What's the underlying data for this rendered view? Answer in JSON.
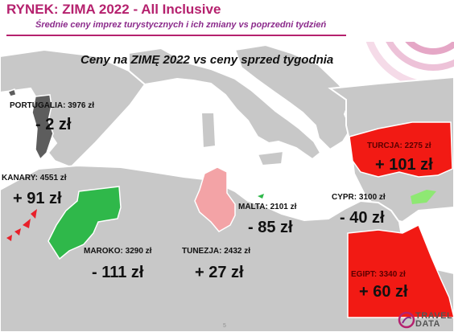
{
  "header": {
    "title": "RYNEK:  ZIMA 2022 - All Inclusive",
    "subtitle": "Średnie ceny imprez turystycznych i ich zmiany vs poprzedni tydzień"
  },
  "map_title": "Ceny na ZIMĘ 2022  vs  ceny sprzed tygodnia",
  "destinations": [
    {
      "label": "PORTUGALIA: 3976 zł",
      "delta": "- 2 zł",
      "color": "#5d5d5d"
    },
    {
      "label": "KANARY: 4551 zł",
      "delta": "+ 91 zł",
      "color": "#e8202a"
    },
    {
      "label": "MAROKO: 3290 zł",
      "delta": "- 111 zł",
      "color": "#2fb84a"
    },
    {
      "label": "TUNEZJA: 2432 zł",
      "delta": "+ 27 zł",
      "color": "#f3a3a6"
    },
    {
      "label": "MALTA: 2101 zł",
      "delta": "- 85 zł",
      "color": "#2fb84a"
    },
    {
      "label": "CYPR: 3100 zł",
      "delta": "- 40 zł",
      "color": "#8ee873"
    },
    {
      "label": "TURCJA: 2275 zł",
      "delta": "+ 101 zł",
      "color": "#f21a14"
    },
    {
      "label": "EGIPT: 3340 zł",
      "delta": "+ 60 zł",
      "color": "#f21a14"
    }
  ],
  "colors": {
    "brand": "#b5216e",
    "sea": "#ffffff",
    "land": "#c7c7c7",
    "accent_ring": "#e9b7cf"
  },
  "footer": {
    "page_number": "5",
    "logo_text": "TRAVEL DATA"
  }
}
